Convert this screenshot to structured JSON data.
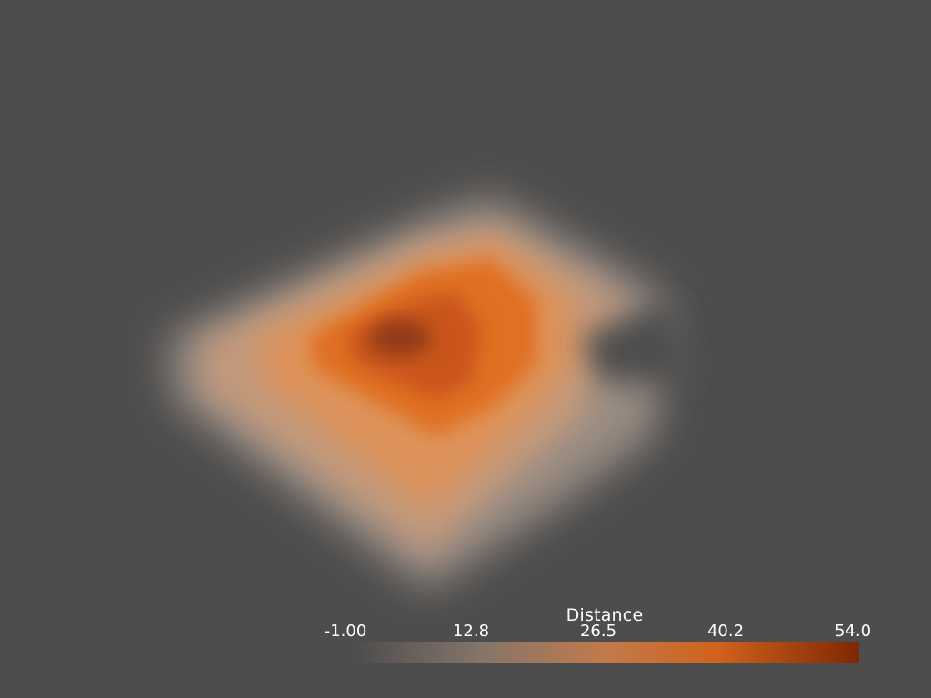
{
  "scene": {
    "background_color": "#4d4d4d",
    "subject": "volume-rendering"
  },
  "colormap": {
    "name": "Oranges",
    "low_color": "#4d4d4d",
    "mid_color": "#e3701e",
    "high_color": "#7f2704"
  },
  "scalar_bar": {
    "title": "Distance",
    "labels": [
      "-1.00",
      "12.8",
      "26.5",
      "40.2",
      "54.0"
    ],
    "range": [
      -1.0,
      54.0
    ]
  }
}
